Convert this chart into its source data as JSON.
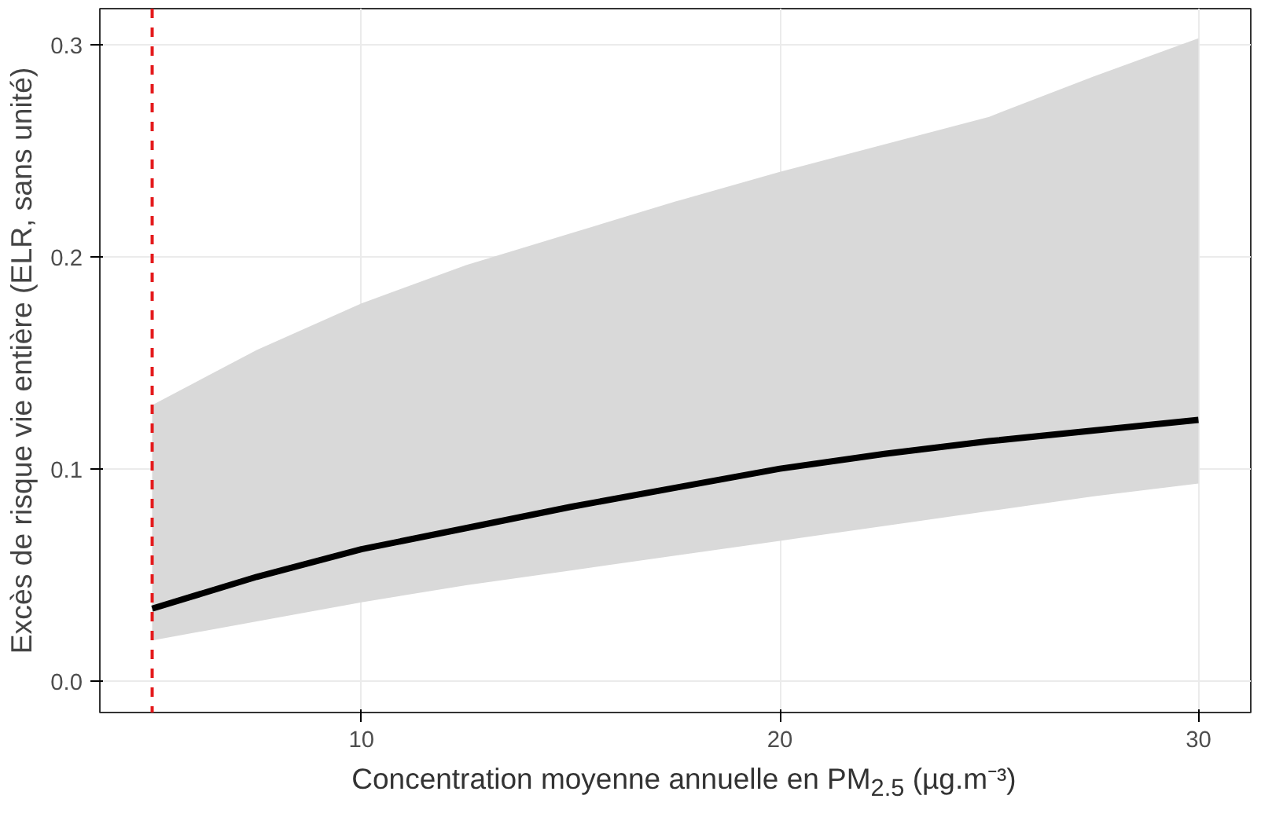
{
  "chart_data": {
    "type": "line",
    "xlabel": "Concentration moyenne annuelle en PM$_{2.5}$ (µg.m⁻³)",
    "ylabel": "Excès de risque vie entière (ELR, sans unité)",
    "x": [
      5,
      7.5,
      10,
      12.5,
      15,
      17.5,
      20,
      22.5,
      25,
      27.5,
      30
    ],
    "series": [
      {
        "color": "#000000",
        "values": [
          0.034,
          0.049,
          0.062,
          0.072,
          0.082,
          0.091,
          0.1,
          0.107,
          0.113,
          0.118,
          0.123
        ],
        "lower": [
          0.019,
          0.028,
          0.037,
          0.045,
          0.052,
          0.059,
          0.066,
          0.073,
          0.08,
          0.087,
          0.093
        ],
        "upper": [
          0.13,
          0.156,
          0.178,
          0.196,
          0.211,
          0.226,
          0.24,
          0.253,
          0.266,
          0.285,
          0.303
        ]
      }
    ],
    "xlim": [
      3.75,
      31.25
    ],
    "ylim": [
      -0.015,
      0.317
    ],
    "xticks": [
      10,
      20,
      30
    ],
    "yticks": [
      {
        "value": 0,
        "label": "0.0"
      },
      {
        "value": 0.1,
        "label": "0.1"
      },
      {
        "value": 0.2,
        "label": "0.2"
      },
      {
        "value": 0.3,
        "label": "0.3"
      }
    ],
    "ref_lines": [
      {
        "axis": "x",
        "value": 5,
        "color": "#e41a1c",
        "line_style": "dashed"
      }
    ],
    "grid": true
  }
}
